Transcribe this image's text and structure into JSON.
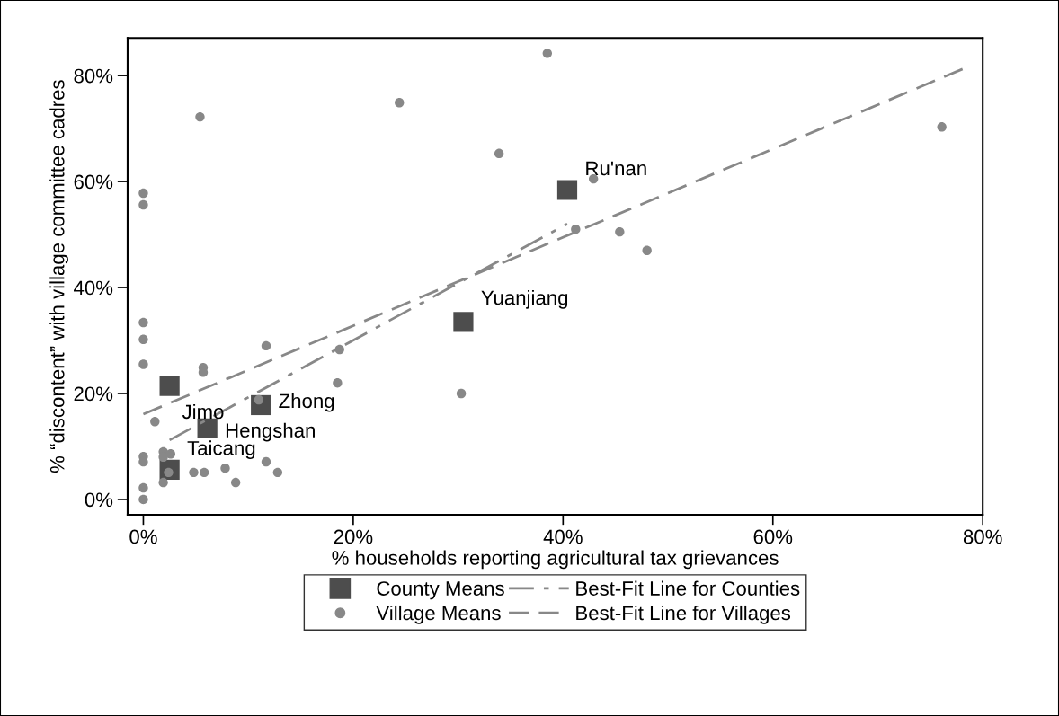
{
  "chart_data": {
    "type": "scatter",
    "xlabel": "% households reporting agricultural tax grievances",
    "ylabel": "% “discontent” with village committee cadres",
    "xlim": [
      -1.5,
      80
    ],
    "ylim": [
      -2.9,
      87.1
    ],
    "xticks": [
      {
        "value": 0,
        "label": "0%"
      },
      {
        "value": 20,
        "label": "20%"
      },
      {
        "value": 40,
        "label": "40%"
      },
      {
        "value": 60,
        "label": "60%"
      },
      {
        "value": 80,
        "label": "80%"
      }
    ],
    "yticks": [
      {
        "value": 0,
        "label": "0%"
      },
      {
        "value": 20,
        "label": "20%"
      },
      {
        "value": 40,
        "label": "40%"
      },
      {
        "value": 60,
        "label": "60%"
      },
      {
        "value": 80,
        "label": "80%"
      }
    ],
    "grid": false,
    "legend": "bottom",
    "series": [
      {
        "name": "County Means",
        "marker": "square",
        "color": "#4d4d4d",
        "x": [
          2.5,
          11.2,
          6.1,
          2.5,
          30.5,
          40.4
        ],
        "values": [
          21.4,
          17.8,
          13.4,
          5.6,
          33.5,
          58.4
        ]
      },
      {
        "name": "Village Means",
        "marker": "circle",
        "color": "#888888",
        "x": [
          0,
          0,
          0,
          0,
          0,
          1.1,
          1.9,
          2.6,
          1.9,
          2.4,
          1.9,
          4.8,
          5.8,
          7.8,
          8.8,
          11.7,
          12.8,
          5.7,
          5.7,
          11.0,
          11.7,
          18.5,
          18.7,
          0,
          0,
          5.4,
          0,
          0,
          38.5,
          24.4,
          33.9,
          42.9,
          41.2,
          45.4,
          30.3,
          76.1,
          48.0
        ],
        "values": [
          25.5,
          8.1,
          7.1,
          2.2,
          0,
          14.7,
          9.0,
          8.6,
          8.0,
          5.1,
          3.2,
          5.1,
          5.1,
          5.9,
          3.2,
          7.1,
          5.1,
          24.9,
          24.0,
          18.8,
          29.0,
          22.0,
          28.3,
          57.8,
          55.6,
          72.2,
          33.4,
          30.2,
          84.2,
          74.9,
          65.3,
          60.5,
          51.0,
          50.5,
          20.0,
          70.3,
          47.0
        ]
      },
      {
        "name": "Best-Fit Line for Counties",
        "type": "line",
        "marker": "none",
        "line_style": "dashdot",
        "color": "#888888",
        "x": [
          2.5,
          40.4
        ],
        "values": [
          11.2,
          52.0
        ]
      },
      {
        "name": "Best-Fit Line for Villages",
        "type": "line",
        "marker": "none",
        "line_style": "dashed",
        "color": "#888888",
        "x": [
          0,
          78.4
        ],
        "values": [
          16.1,
          81.5
        ]
      }
    ],
    "annotations": [
      {
        "text": "Jimo",
        "x": 2.5,
        "y": 21.4
      },
      {
        "text": "Zhong",
        "x": 11.2,
        "y": 17.8
      },
      {
        "text": "Hengshan",
        "x": 6.1,
        "y": 13.4
      },
      {
        "text": "Taicang",
        "x": 2.5,
        "y": 5.6
      },
      {
        "text": "Yuanjiang",
        "x": 30.5,
        "y": 33.5
      },
      {
        "text": "Ru'nan",
        "x": 40.4,
        "y": 58.4
      }
    ]
  }
}
